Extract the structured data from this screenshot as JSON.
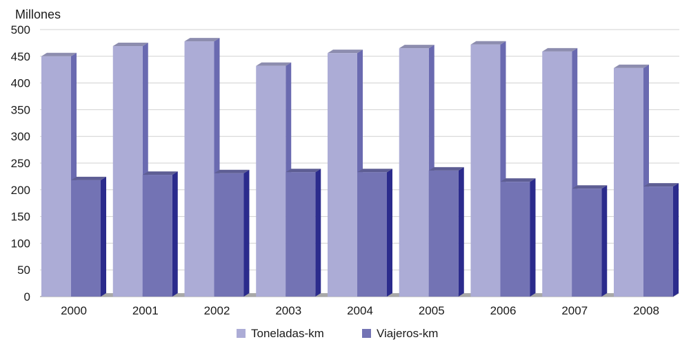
{
  "chart_data": {
    "type": "bar",
    "title": "",
    "ylabel": "Millones",
    "xlabel": "",
    "categories": [
      "2000",
      "2001",
      "2002",
      "2003",
      "2004",
      "2005",
      "2006",
      "2007",
      "2008"
    ],
    "series": [
      {
        "name": "Toneladas-km",
        "values": [
          450,
          469,
          478,
          432,
          456,
          465,
          472,
          459,
          428
        ],
        "color": "#acacd6"
      },
      {
        "name": "Viajeros-km",
        "values": [
          218,
          228,
          231,
          233,
          233,
          236,
          215,
          202,
          206
        ],
        "color": "#7373b4"
      }
    ],
    "ylim": [
      0,
      500
    ],
    "yticks": [
      0,
      50,
      100,
      150,
      200,
      250,
      300,
      350,
      400,
      450,
      500
    ],
    "grid": true,
    "legend_position": "bottom",
    "style": "3d-bars"
  }
}
